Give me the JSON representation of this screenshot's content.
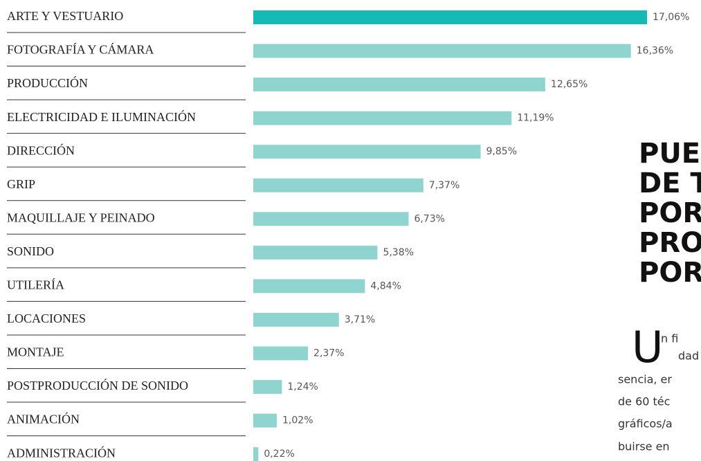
{
  "chart_data": {
    "type": "bar",
    "orientation": "horizontal",
    "categories": [
      "ARTE Y VESTUARIO",
      "FOTOGRAFÍA Y CÁMARA",
      "PRODUCCIÓN",
      "ELECTRICIDAD E ILUMINACIÓN",
      "DIRECCIÓN",
      "GRIP",
      "MAQUILLAJE Y PEINADO",
      "SONIDO",
      "UTILERÍA",
      "LOCACIONES",
      "MONTAJE",
      "POSTPRODUCCIÓN DE SONIDO",
      "ANIMACIÓN",
      "ADMINISTRACIÓN"
    ],
    "values": [
      17.06,
      16.36,
      12.65,
      11.19,
      9.85,
      7.37,
      6.73,
      5.38,
      4.84,
      3.71,
      2.37,
      1.24,
      1.02,
      0.22
    ],
    "value_labels": [
      "17,06%",
      "16,36%",
      "12,65%",
      "11,19%",
      "9,85%",
      "7,37%",
      "6,73%",
      "5,38%",
      "4,84%",
      "3,71%",
      "2,37%",
      "1,24%",
      "1,02%",
      "0,22%"
    ],
    "colors": [
      "#14bab3",
      "#90d4d0",
      "#90d4d0",
      "#90d4d0",
      "#90d4d0",
      "#90d4d0",
      "#90d4d0",
      "#90d4d0",
      "#90d4d0",
      "#90d4d0",
      "#90d4d0",
      "#90d4d0",
      "#90d4d0",
      "#90d4d0"
    ],
    "xlim": [
      0,
      17.06
    ]
  },
  "article": {
    "heading_lines": [
      "PUES",
      "DE TI",
      "POR",
      "PRO",
      "POR"
    ],
    "drop_cap": "U",
    "body_lines": [
      "n fi",
      "dad",
      "sencia, er",
      "de 60 téc",
      "gráficos/a",
      "buirse en"
    ]
  }
}
